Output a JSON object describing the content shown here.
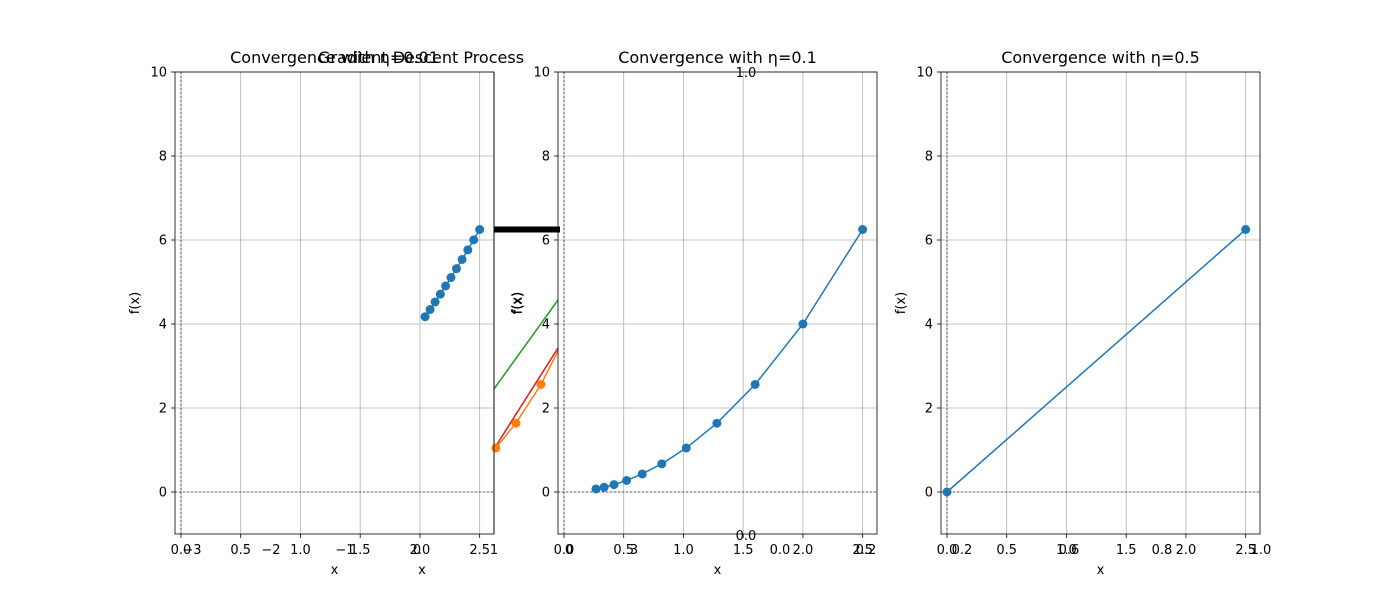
{
  "chart_data": [
    {
      "type": "scatter",
      "title": "Convergence with η=0.01",
      "xlabel": "x",
      "ylabel": "f(x)",
      "xlim": [
        -0.05,
        2.62
      ],
      "ylim": [
        -1,
        10
      ],
      "xticks": [
        "0.0",
        "0.5",
        "1.0",
        "1.5",
        "2.0",
        "2.5"
      ],
      "yticks": [
        "0",
        "2",
        "4",
        "6",
        "8",
        "10"
      ],
      "grid": true,
      "series": [
        {
          "color": "#1f77b4",
          "x": [
            2.5,
            2.45,
            2.401,
            2.353,
            2.306,
            2.26,
            2.215,
            2.171,
            2.127,
            2.085,
            2.043
          ],
          "y": [
            6.25,
            6.003,
            5.765,
            5.537,
            5.318,
            5.107,
            4.905,
            4.711,
            4.524,
            4.345,
            4.173
          ]
        }
      ]
    },
    {
      "type": "line",
      "title": "Gradient Descent Process",
      "xlabel": "x",
      "ylabel": "f(x)",
      "xticks": [
        "−3",
        "−2",
        "−1",
        "0",
        "1",
        "2",
        "3"
      ],
      "yticks": [
        "0.0",
        "0.2",
        "0.4",
        "0.6",
        "0.8",
        "1.0"
      ],
      "x_axis_tick_labels_visible": [
        "0",
        "1"
      ],
      "series": [
        {
          "color": "#ff7f0e",
          "x": [
            1.024,
            1.28,
            1.6
          ],
          "y": [
            1.049,
            1.638,
            2.56
          ]
        },
        {
          "color": "#2ca02c",
          "x": [
            -3,
            3
          ],
          "y": [
            2.44,
            4.56
          ]
        },
        {
          "color": "#d62728",
          "x": [
            -3,
            3
          ],
          "y": [
            1.03,
            3.38
          ]
        },
        {
          "color": "#000000",
          "x": [
            -3,
            3
          ],
          "y": [
            6.25,
            6.25
          ]
        }
      ]
    },
    {
      "type": "scatter",
      "title": "Convergence with η=0.1",
      "xlabel": "x",
      "ylabel": "f(x)",
      "xlim": [
        -0.05,
        2.62
      ],
      "ylim": [
        -1,
        10
      ],
      "xticks": [
        "0.0",
        "0.5",
        "1.0",
        "1.5",
        "2.0",
        "2.5"
      ],
      "yticks": [
        "0",
        "2",
        "4",
        "6",
        "8",
        "10"
      ],
      "grid": true,
      "series": [
        {
          "color": "#1f77b4",
          "x": [
            2.5,
            2.0,
            1.6,
            1.28,
            1.024,
            0.819,
            0.655,
            0.524,
            0.419,
            0.336,
            0.268
          ],
          "y": [
            6.25,
            4.0,
            2.56,
            1.638,
            1.049,
            0.671,
            0.429,
            0.275,
            0.176,
            0.113,
            0.072
          ]
        }
      ]
    },
    {
      "type": "scatter",
      "title": "Convergence with η=0.5",
      "xlabel": "x",
      "ylabel": "f(x)",
      "xlim": [
        -0.05,
        2.62
      ],
      "ylim": [
        -1,
        10
      ],
      "xticks": [
        "0.0",
        "0.5",
        "1.0",
        "1.5",
        "2.0",
        "2.5"
      ],
      "yticks": [
        "0",
        "2",
        "4",
        "6",
        "8",
        "10"
      ],
      "grid": true,
      "series": [
        {
          "color": "#1f77b4",
          "x": [
            2.5,
            0.0
          ],
          "y": [
            6.25,
            0.0
          ]
        }
      ]
    }
  ],
  "stray_tick_labels": {
    "left_group": [
      "−3",
      "−2",
      "−1",
      "0",
      "0.2",
      "0.4",
      "0.6",
      "0.8",
      "1.0"
    ],
    "middle_group": [
      "0.0",
      "0.2",
      "0.4",
      "0.6",
      "0.8",
      "1.0"
    ],
    "right_group": [
      "0.2",
      "0.4",
      "0.6",
      "0.8",
      "1.0"
    ]
  }
}
